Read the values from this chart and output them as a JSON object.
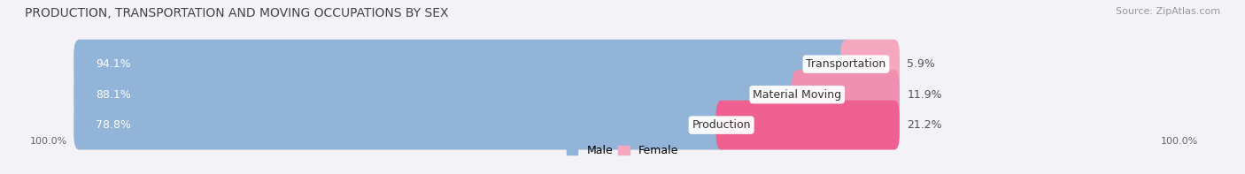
{
  "title": "PRODUCTION, TRANSPORTATION AND MOVING OCCUPATIONS BY SEX",
  "source": "Source: ZipAtlas.com",
  "categories": [
    "Transportation",
    "Material Moving",
    "Production"
  ],
  "male_pct": [
    94.1,
    88.1,
    78.8
  ],
  "female_pct": [
    5.9,
    11.9,
    21.2
  ],
  "male_color": "#92b4d8",
  "female_colors": [
    "#f4a8c0",
    "#f090b0",
    "#ee6090"
  ],
  "bar_bg_color": "#e0e0e8",
  "title_fontsize": 10,
  "source_fontsize": 8,
  "label_fontsize": 9,
  "pct_label_fontsize": 9,
  "bar_height": 0.62,
  "left_label": "100.0%",
  "right_label": "100.0%",
  "bg_color": "#f2f2f7",
  "total_bar_width": 75.0
}
